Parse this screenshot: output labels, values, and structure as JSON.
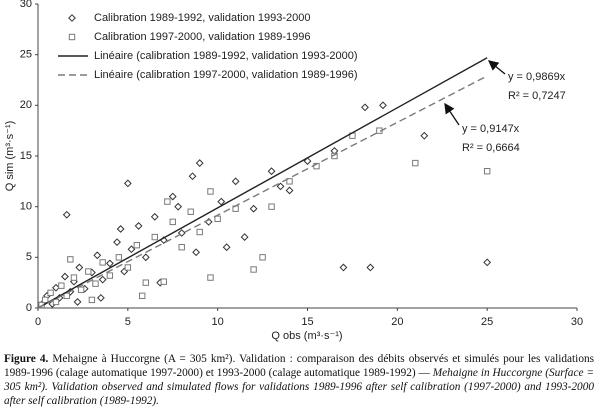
{
  "chart_data": {
    "type": "scatter",
    "xlabel": "Q obs (m³·s⁻¹)",
    "ylabel": "Q sim (m³·s⁻¹)",
    "xlim": [
      0,
      30
    ],
    "ylim": [
      0,
      30
    ],
    "xticks": [
      0,
      5,
      10,
      15,
      20,
      25,
      30
    ],
    "yticks": [
      0,
      5,
      10,
      15,
      20,
      25,
      30
    ],
    "grid": false,
    "legend": "upper left",
    "series": [
      {
        "name": "Calibration 1989-1992, validation 1993-2000",
        "color": "#333333",
        "marker": "diamond",
        "x": [
          0.3,
          0.5,
          0.8,
          1.0,
          1.2,
          1.5,
          1.8,
          2.0,
          2.3,
          2.6,
          3.0,
          3.3,
          3.6,
          4.0,
          4.4,
          4.8,
          5.2,
          5.6,
          6.0,
          6.5,
          7.0,
          7.5,
          8.0,
          8.6,
          9.0,
          9.5,
          10.2,
          11.0,
          12.0,
          13.0,
          14.0,
          15.0,
          16.5,
          17.0,
          18.2,
          18.5,
          19.2,
          21.5,
          25.0,
          5.0,
          1.6,
          3.5,
          6.8,
          8.8,
          11.5,
          2.2,
          4.6,
          7.8,
          10.5,
          13.5
        ],
        "values": [
          0.5,
          1.2,
          0.4,
          2.0,
          1.0,
          3.1,
          1.6,
          2.6,
          4.0,
          1.9,
          3.5,
          5.2,
          2.8,
          4.4,
          6.5,
          3.6,
          5.8,
          8.1,
          5.0,
          9.0,
          6.7,
          11.0,
          7.4,
          13.0,
          14.3,
          8.5,
          10.5,
          12.5,
          9.8,
          13.5,
          11.6,
          14.5,
          15.5,
          4.0,
          19.8,
          4.0,
          20.0,
          17.0,
          4.5,
          12.3,
          9.2,
          1.0,
          2.5,
          5.5,
          7.0,
          0.6,
          7.8,
          10.0,
          6.0,
          12.0
        ]
      },
      {
        "name": "Calibration 1997-2000, validation 1989-1996",
        "color": "#7a7a7a",
        "marker": "square",
        "x": [
          0.2,
          0.4,
          0.7,
          1.0,
          1.3,
          1.6,
          2.0,
          2.4,
          2.8,
          3.2,
          3.6,
          4.0,
          4.5,
          5.0,
          5.5,
          6.0,
          6.5,
          7.0,
          7.5,
          8.0,
          8.5,
          9.0,
          9.6,
          10.0,
          11.0,
          12.0,
          13.0,
          14.0,
          15.5,
          16.5,
          17.5,
          19.0,
          21.0,
          25.0,
          3.0,
          5.8,
          7.2,
          9.6,
          12.5,
          1.8
        ],
        "values": [
          0.3,
          0.8,
          1.5,
          0.6,
          2.2,
          1.2,
          3.0,
          1.8,
          3.6,
          2.4,
          4.5,
          3.2,
          5.0,
          4.0,
          6.2,
          2.5,
          7.0,
          2.6,
          8.5,
          6.0,
          9.5,
          7.5,
          3.0,
          8.8,
          9.8,
          3.8,
          10.0,
          12.5,
          14.0,
          15.0,
          17.0,
          17.5,
          14.3,
          13.5,
          0.8,
          1.2,
          10.5,
          11.5,
          5.0,
          4.8
        ]
      },
      {
        "name": "Linéaire (calibration 1989-1992, validation 1993-2000)",
        "color": "#222222",
        "line_style": "solid",
        "x": [
          0,
          25
        ],
        "values": [
          0,
          24.7
        ]
      },
      {
        "name": "Linéaire (calibration 1997-2000, validation 1989-1996)",
        "color": "#7a7a7a",
        "line_style": "dashed",
        "x": [
          0,
          25
        ],
        "values": [
          0,
          22.9
        ]
      }
    ],
    "annotations": [
      "y = 0,9869x",
      "R² = 0,7247",
      "y = 0,9147x",
      "R² = 0,6664"
    ]
  },
  "caption": {
    "label": "Figure 4.",
    "french": "Mehaigne à Huccorgne (A = 305 km²). Validation : comparaison des débits observés et simulés pour les validations 1989-1996 (calage automatique 1997-2000) et 1993-2000 (calage automatique 1989-1992) — ",
    "english": "Mehaigne in Huccorgne (Surface = 305 km²). Validation observed and simulated flows for validations 1989-1996 after self calibration (1997-2000) and 1993-2000 after self calibration (1989-1992)."
  }
}
